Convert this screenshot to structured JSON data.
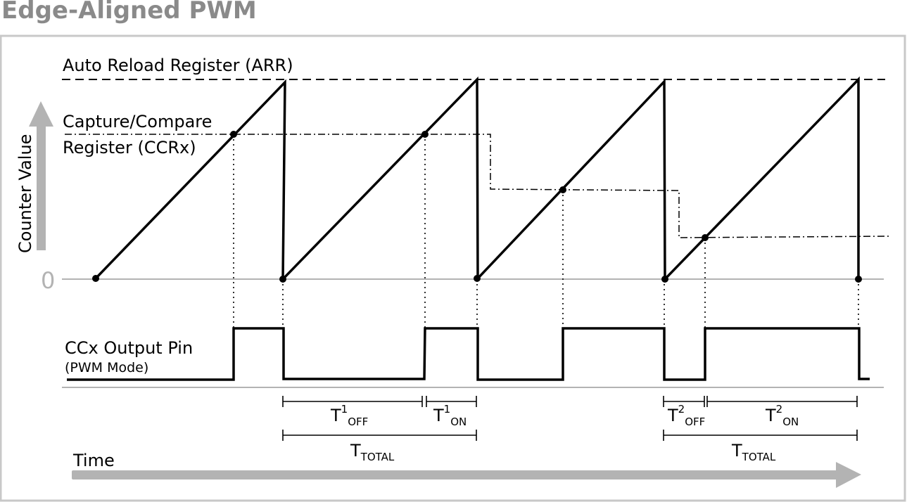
{
  "title": "Edge-Aligned PWM",
  "labels": {
    "arr": "Auto Reload Register (ARR)",
    "ccr_line1": "Capture/Compare",
    "ccr_line2": "Register (CCRx)",
    "y_axis": "Counter Value",
    "zero": "0",
    "output_pin": "CCx Output Pin",
    "output_mode": "(PWM Mode)",
    "time": "Time"
  },
  "intervals": {
    "t": "T",
    "sup1": "1",
    "sup2": "2",
    "off": "OFF",
    "on": "ON",
    "total": "TOTAL"
  },
  "colors": {
    "title": "#8a8a8a",
    "frame": "#c8c8c8",
    "axis_arrow": "#b3b3b3",
    "signal": "#000000"
  }
}
